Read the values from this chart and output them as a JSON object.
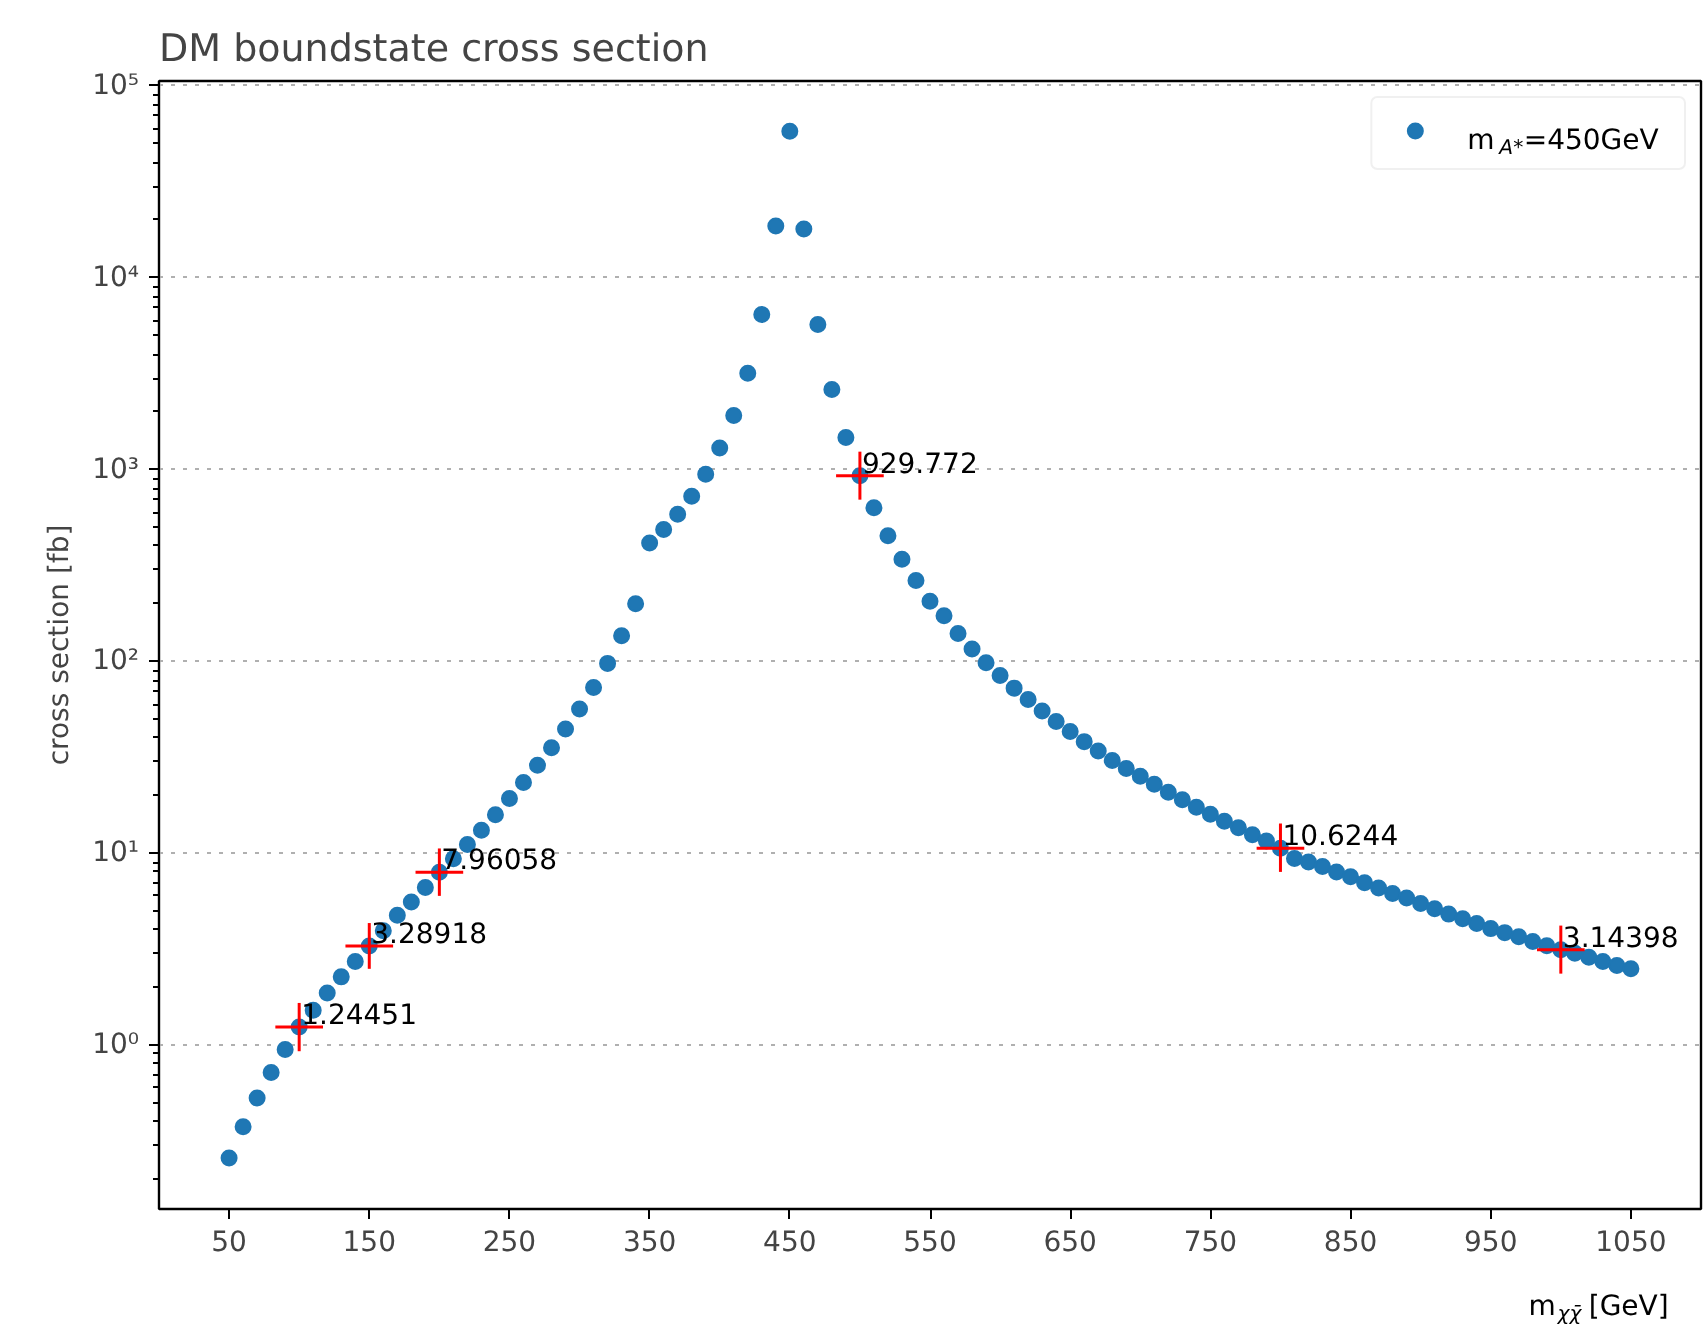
{
  "chart_data": {
    "type": "scatter",
    "title": "DM boundstate cross section",
    "xlabel": "m$_{χχ̄}$ [GeV]",
    "ylabel": "cross section [fb]",
    "log": "y",
    "grid": "y",
    "legend": "top right",
    "xlim": [
      0,
      1100
    ],
    "xticks": [
      50,
      150,
      250,
      350,
      450,
      550,
      650,
      750,
      850,
      950,
      1050
    ],
    "ylim": [
      0.14,
      106000
    ],
    "yticks": [
      {
        "value": 1,
        "label": "10⁰"
      },
      {
        "value": 10,
        "label": "10¹"
      },
      {
        "value": 100,
        "label": "10²"
      },
      {
        "value": 1000,
        "label": "10³"
      },
      {
        "value": 10000,
        "label": "10⁴"
      },
      {
        "value": 100000,
        "label": "10⁵"
      }
    ],
    "series": [
      {
        "name": "m$_{A*}$=450GeV",
        "color": "#1f77b4",
        "marker": "circle",
        "x": [
          50,
          60,
          70,
          80,
          90,
          100,
          110,
          120,
          130,
          140,
          150,
          160,
          170,
          180,
          190,
          200,
          210,
          220,
          230,
          240,
          250,
          260,
          270,
          280,
          290,
          300,
          310,
          320,
          330,
          340,
          350,
          360,
          370,
          380,
          390,
          400,
          410,
          420,
          430,
          440,
          450,
          460,
          470,
          480,
          490,
          500,
          510,
          520,
          530,
          540,
          550,
          560,
          570,
          580,
          590,
          600,
          610,
          620,
          630,
          640,
          650,
          660,
          670,
          680,
          690,
          700,
          710,
          720,
          730,
          740,
          750,
          760,
          770,
          780,
          790,
          800,
          810,
          820,
          830,
          840,
          850,
          860,
          870,
          880,
          890,
          900,
          910,
          920,
          930,
          940,
          950,
          960,
          970,
          980,
          990,
          1000,
          1010,
          1020,
          1030,
          1040,
          1050
        ],
        "values": [
          0.258,
          0.376,
          0.531,
          0.72,
          0.95,
          1.24451,
          1.52,
          1.87,
          2.27,
          2.73,
          3.28918,
          3.95,
          4.75,
          5.57,
          6.64,
          7.96058,
          9.38,
          11.1,
          13.2,
          15.9,
          19.3,
          23.4,
          28.8,
          35.5,
          44.4,
          56.5,
          73.1,
          97.7,
          136,
          200,
          414,
          487,
          585,
          727,
          946,
          1294,
          1915,
          3174,
          6427,
          18620,
          57940,
          17930,
          5700,
          2618,
          1469,
          929.772,
          632,
          452,
          341,
          264,
          206,
          173,
          140,
          116,
          98.4,
          84.5,
          72.6,
          63.3,
          55.2,
          48.6,
          43.1,
          38.2,
          34.1,
          30.5,
          27.7,
          25.2,
          22.9,
          20.8,
          19.0,
          17.4,
          16.0,
          14.7,
          13.6,
          12.5,
          11.6,
          10.6244,
          9.4,
          9.0,
          8.53,
          8.0,
          7.55,
          7.03,
          6.59,
          6.18,
          5.85,
          5.48,
          5.14,
          4.82,
          4.56,
          4.31,
          4.05,
          3.86,
          3.67,
          3.47,
          3.3,
          3.14398,
          3.01,
          2.87,
          2.73,
          2.6,
          2.5
        ]
      },
      {
        "color": "#ff0000",
        "marker": "cross",
        "x": [
          100,
          150,
          200,
          500,
          800,
          1000
        ],
        "values": [
          1.24451,
          3.28918,
          7.96058,
          929.772,
          10.6244,
          3.14398
        ],
        "errors": [
          [
            0.93,
            1.66
          ],
          [
            2.5,
            4.33
          ],
          [
            6.0,
            10.6
          ],
          [
            697,
            1240
          ],
          [
            8.0,
            14.3
          ],
          [
            2.36,
            4.2
          ]
        ],
        "xerrors": [
          17,
          17,
          17,
          17,
          17,
          17
        ],
        "value_labels": [
          "1.24451",
          "3.28918",
          "7.96058",
          "929.772",
          "10.6244",
          "3.14398"
        ]
      }
    ]
  }
}
